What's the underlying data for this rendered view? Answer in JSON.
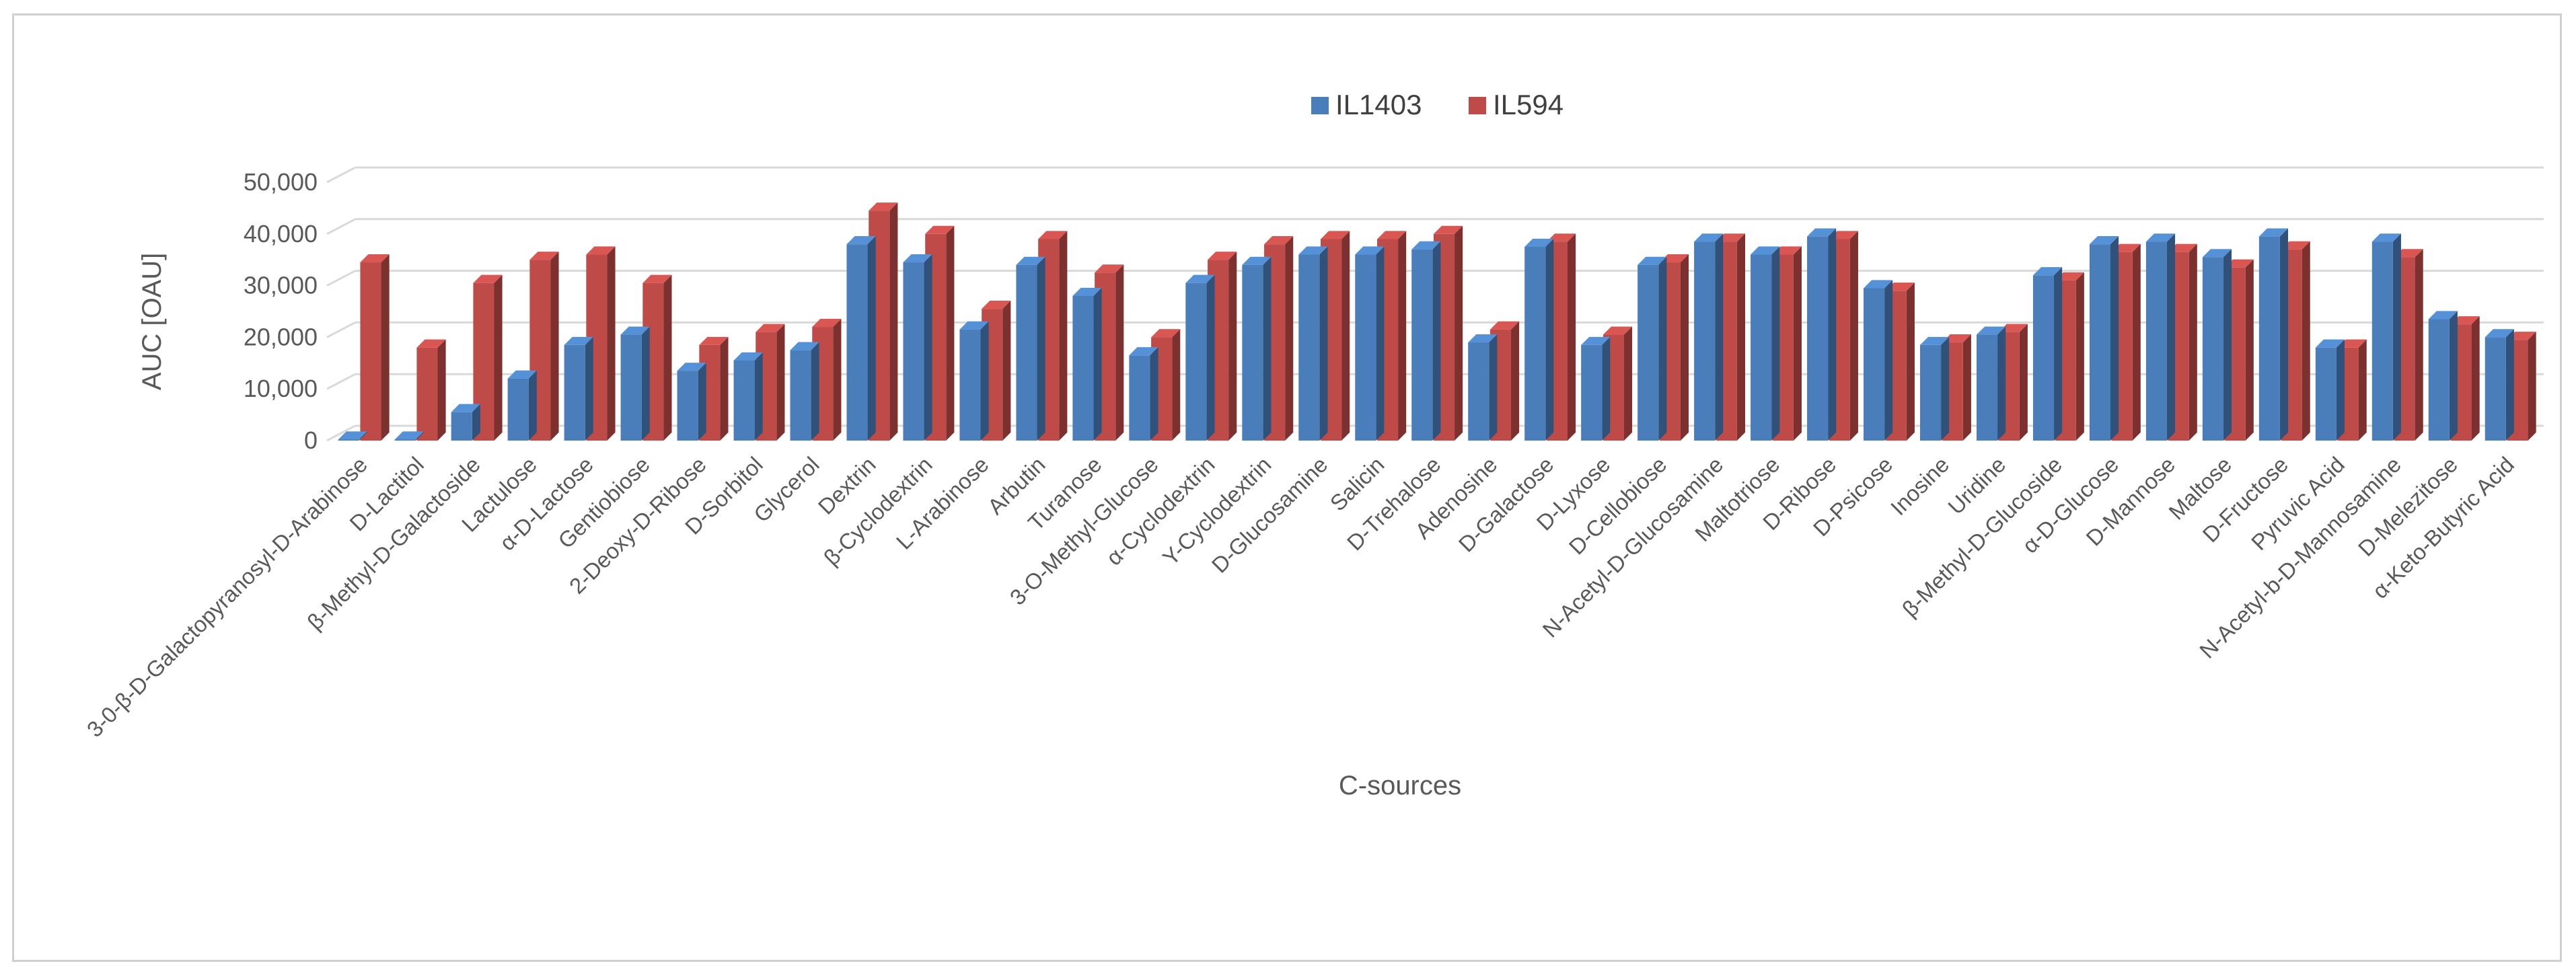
{
  "chart_data": {
    "type": "bar",
    "title": "",
    "xlabel": "C-sources",
    "ylabel": "AUC [OAU]",
    "ylim": [
      0,
      50000
    ],
    "yticks": [
      0,
      10000,
      20000,
      30000,
      40000,
      50000
    ],
    "ytick_labels": [
      "0",
      "10,000",
      "20,000",
      "30,000",
      "40,000",
      "50,000"
    ],
    "grid": true,
    "legend_position": "top-center",
    "categories": [
      "3-0-β-D-Galactopyranosyl-D-Arabinose",
      "D-Lactitol",
      "β-Methyl-D-Galactoside",
      "Lactulose",
      "α-D-Lactose",
      "Gentiobiose",
      "2-Deoxy-D-Ribose",
      "D-Sorbitol",
      "Glycerol",
      "Dextrin",
      "β-Cyclodextrin",
      "L-Arabinose",
      "Arbutin",
      "Turanose",
      "3-O-Methyl-Glucose",
      "α-Cyclodextrin",
      "Y-Cyclodextrin",
      "D-Glucosamine",
      "Salicin",
      "D-Trehalose",
      "Adenosine",
      "D-Galactose",
      "D-Lyxose",
      "D-Cellobiose",
      "N-Acetyl-D-Glucosamine",
      "Maltotriose",
      "D-Ribose",
      "D-Psicose",
      "Inosine",
      "Uridine",
      "β-Methyl-D-Glucoside",
      "α-D-Glucose",
      "D-Mannose",
      "Maltose",
      "D-Fructose",
      "Pyruvic Acid",
      "N-Acetyl-b-D-Mannosamine",
      "D-Melezitose",
      "α-Keto-Butyric Acid"
    ],
    "series": [
      {
        "name": "IL1403",
        "color": "#4a7ebb",
        "values": [
          200,
          200,
          5500,
          12000,
          18500,
          20500,
          13500,
          15500,
          17500,
          38000,
          34500,
          21500,
          34000,
          28000,
          16500,
          30500,
          34000,
          36000,
          36000,
          37000,
          19000,
          37500,
          18500,
          34000,
          38500,
          36000,
          39500,
          29500,
          18500,
          20500,
          32000,
          38000,
          38500,
          35500,
          39500,
          18000,
          38500,
          23500,
          20000
        ]
      },
      {
        "name": "IL594",
        "color": "#be4b48",
        "values": [
          34500,
          18000,
          30500,
          35000,
          36000,
          30500,
          18500,
          21000,
          22000,
          44500,
          40000,
          25500,
          39000,
          32500,
          20000,
          35000,
          38000,
          39000,
          39000,
          40000,
          21500,
          38500,
          20500,
          34500,
          38500,
          36000,
          39000,
          29000,
          19000,
          21000,
          31000,
          36500,
          36500,
          33500,
          37000,
          18000,
          35500,
          22500,
          19500
        ]
      }
    ]
  }
}
